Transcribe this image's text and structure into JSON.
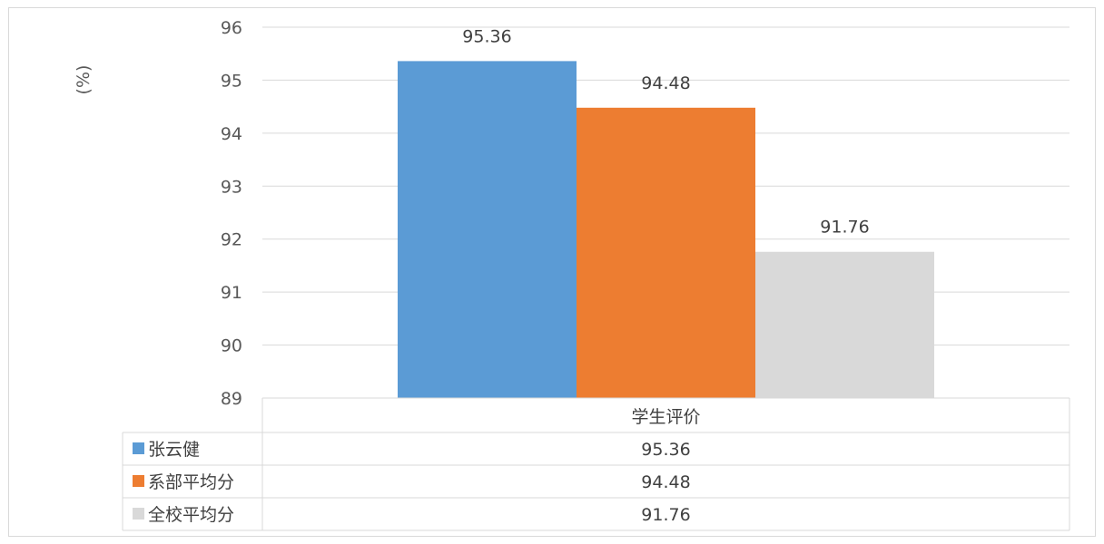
{
  "chart_data": {
    "type": "bar",
    "categories": [
      "学生评价"
    ],
    "series": [
      {
        "name": "张云健",
        "values": [
          95.36
        ],
        "color": "#5b9bd5"
      },
      {
        "name": "系部平均分",
        "values": [
          94.48
        ],
        "color": "#ed7d31"
      },
      {
        "name": "全校平均分",
        "values": [
          91.76
        ],
        "color": "#d9d9d9"
      }
    ],
    "ylabel": "(%)",
    "ylim": [
      89,
      96
    ],
    "yticks": [
      89,
      90,
      91,
      92,
      93,
      94,
      95,
      96
    ],
    "grid": true,
    "data_table": true
  }
}
